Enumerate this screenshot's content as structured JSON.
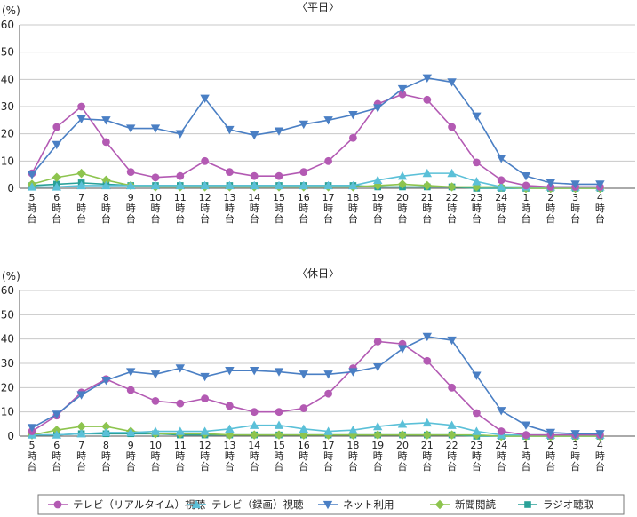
{
  "legend": [
    {
      "label": "テレビ（リアルタイム）視聴",
      "color": "#b35ab3",
      "marker": "circle"
    },
    {
      "label": "テレビ（録画）視聴",
      "color": "#5bc0d8",
      "marker": "triangle-up"
    },
    {
      "label": "ネット利用",
      "color": "#4a7fc4",
      "marker": "triangle-down"
    },
    {
      "label": "新聞閲読",
      "color": "#8dc44e",
      "marker": "diamond"
    },
    {
      "label": "ラジオ聴取",
      "color": "#2aa198",
      "marker": "square"
    }
  ],
  "chart_data": [
    {
      "type": "line",
      "title": "〈平日〉",
      "ylabel": "(%)",
      "ylim": [
        0,
        60
      ],
      "yticks": [
        "0",
        "10",
        "20",
        "30",
        "40",
        "50",
        "60"
      ],
      "categories": [
        [
          "5",
          "時",
          "台"
        ],
        [
          "6",
          "時",
          "台"
        ],
        [
          "7",
          "時",
          "台"
        ],
        [
          "8",
          "時",
          "台"
        ],
        [
          "9",
          "時",
          "台"
        ],
        [
          "10",
          "時",
          "台"
        ],
        [
          "11",
          "時",
          "台"
        ],
        [
          "12",
          "時",
          "台"
        ],
        [
          "13",
          "時",
          "台"
        ],
        [
          "14",
          "時",
          "台"
        ],
        [
          "15",
          "時",
          "台"
        ],
        [
          "16",
          "時",
          "台"
        ],
        [
          "17",
          "時",
          "台"
        ],
        [
          "18",
          "時",
          "台"
        ],
        [
          "19",
          "時",
          "台"
        ],
        [
          "20",
          "時",
          "台"
        ],
        [
          "21",
          "時",
          "台"
        ],
        [
          "22",
          "時",
          "台"
        ],
        [
          "23",
          "時",
          "台"
        ],
        [
          "24",
          "時",
          "台"
        ],
        [
          "1",
          "時",
          "台"
        ],
        [
          "2",
          "時",
          "台"
        ],
        [
          "3",
          "時",
          "台"
        ],
        [
          "4",
          "時",
          "台"
        ]
      ],
      "series": [
        {
          "name": "テレビ（リアルタイム）視聴",
          "values": [
            5.5,
            22.5,
            30,
            17,
            6,
            4,
            4.5,
            10,
            6,
            4.5,
            4.5,
            6,
            10,
            18.5,
            31,
            34.5,
            32.5,
            22.5,
            9.5,
            3,
            1,
            0.5,
            0.5,
            0.5
          ]
        },
        {
          "name": "テレビ（録画）視聴",
          "values": [
            0.5,
            0.5,
            1,
            1,
            1,
            1,
            1,
            1,
            1,
            1,
            1,
            1,
            1,
            1,
            3,
            4.5,
            5.5,
            5.5,
            2.5,
            0.5,
            0.5,
            0.5,
            0.5,
            0.5
          ]
        },
        {
          "name": "ネット利用",
          "values": [
            5,
            16,
            25.5,
            25,
            22,
            22,
            20,
            33,
            21.5,
            19.5,
            21,
            23.5,
            25,
            27,
            29.5,
            36.5,
            40.5,
            39,
            26.5,
            11,
            4.5,
            2,
            1.5,
            1.5
          ]
        },
        {
          "name": "新聞閲読",
          "values": [
            1.5,
            4,
            5.5,
            3,
            1,
            0.5,
            0.5,
            0.5,
            0.5,
            0.5,
            0.5,
            0.5,
            0.5,
            0.5,
            1,
            1.5,
            1,
            0.5,
            0.5,
            0.5,
            0,
            0,
            0,
            0
          ]
        },
        {
          "name": "ラジオ聴取",
          "values": [
            1,
            1.5,
            2,
            1.5,
            1,
            1,
            1,
            1,
            1,
            1,
            1,
            1,
            1,
            1,
            0.5,
            0.5,
            0.5,
            0.5,
            0,
            0,
            0,
            0,
            0,
            0
          ]
        }
      ]
    },
    {
      "type": "line",
      "title": "〈休日〉",
      "ylabel": "(%)",
      "ylim": [
        0,
        60
      ],
      "yticks": [
        "0",
        "10",
        "20",
        "30",
        "40",
        "50",
        "60"
      ],
      "categories": [
        [
          "5",
          "時",
          "台"
        ],
        [
          "6",
          "時",
          "台"
        ],
        [
          "7",
          "時",
          "台"
        ],
        [
          "8",
          "時",
          "台"
        ],
        [
          "9",
          "時",
          "台"
        ],
        [
          "10",
          "時",
          "台"
        ],
        [
          "11",
          "時",
          "台"
        ],
        [
          "12",
          "時",
          "台"
        ],
        [
          "13",
          "時",
          "台"
        ],
        [
          "14",
          "時",
          "台"
        ],
        [
          "15",
          "時",
          "台"
        ],
        [
          "16",
          "時",
          "台"
        ],
        [
          "17",
          "時",
          "台"
        ],
        [
          "18",
          "時",
          "台"
        ],
        [
          "19",
          "時",
          "台"
        ],
        [
          "20",
          "時",
          "台"
        ],
        [
          "21",
          "時",
          "台"
        ],
        [
          "22",
          "時",
          "台"
        ],
        [
          "23",
          "時",
          "台"
        ],
        [
          "24",
          "時",
          "台"
        ],
        [
          "1",
          "時",
          "台"
        ],
        [
          "2",
          "時",
          "台"
        ],
        [
          "3",
          "時",
          "台"
        ],
        [
          "4",
          "時",
          "台"
        ]
      ],
      "series": [
        {
          "name": "テレビ（リアルタイム）視聴",
          "values": [
            2,
            8.5,
            18,
            23.5,
            19,
            14.5,
            13.5,
            15.5,
            12.5,
            10,
            10,
            11.5,
            17.5,
            28,
            39,
            38,
            31,
            20,
            9.5,
            2,
            0.5,
            0.5,
            0.5,
            0.5
          ]
        },
        {
          "name": "テレビ（録画）視聴",
          "values": [
            0.5,
            0.5,
            1,
            1.5,
            1.5,
            2,
            2,
            2,
            3,
            4.5,
            4.5,
            3,
            2,
            2.5,
            4,
            5,
            5.5,
            4.5,
            2,
            0.5,
            0.5,
            0.5,
            0.5,
            0.5
          ]
        },
        {
          "name": "ネット利用",
          "values": [
            3.5,
            9,
            17,
            23,
            26.5,
            25.5,
            28,
            24.5,
            27,
            27,
            26.5,
            25.5,
            25.5,
            26.5,
            28.5,
            36,
            41,
            39.5,
            25,
            10.5,
            4.5,
            1.5,
            1,
            1
          ]
        },
        {
          "name": "新聞閲読",
          "values": [
            0.5,
            2.5,
            4,
            4,
            2,
            1,
            1,
            1,
            0.5,
            0.5,
            0.5,
            0.5,
            0.5,
            0.5,
            0.5,
            0.5,
            0.5,
            0.5,
            0.5,
            0,
            0,
            0,
            0,
            0
          ]
        },
        {
          "name": "ラジオ聴取",
          "values": [
            0.5,
            0.5,
            1,
            1,
            1,
            1,
            0.5,
            0.5,
            0.5,
            0.5,
            0.5,
            0.5,
            0.5,
            0.5,
            0.5,
            0.5,
            0.5,
            0.5,
            0,
            0,
            0,
            0,
            0,
            0
          ]
        }
      ]
    }
  ]
}
